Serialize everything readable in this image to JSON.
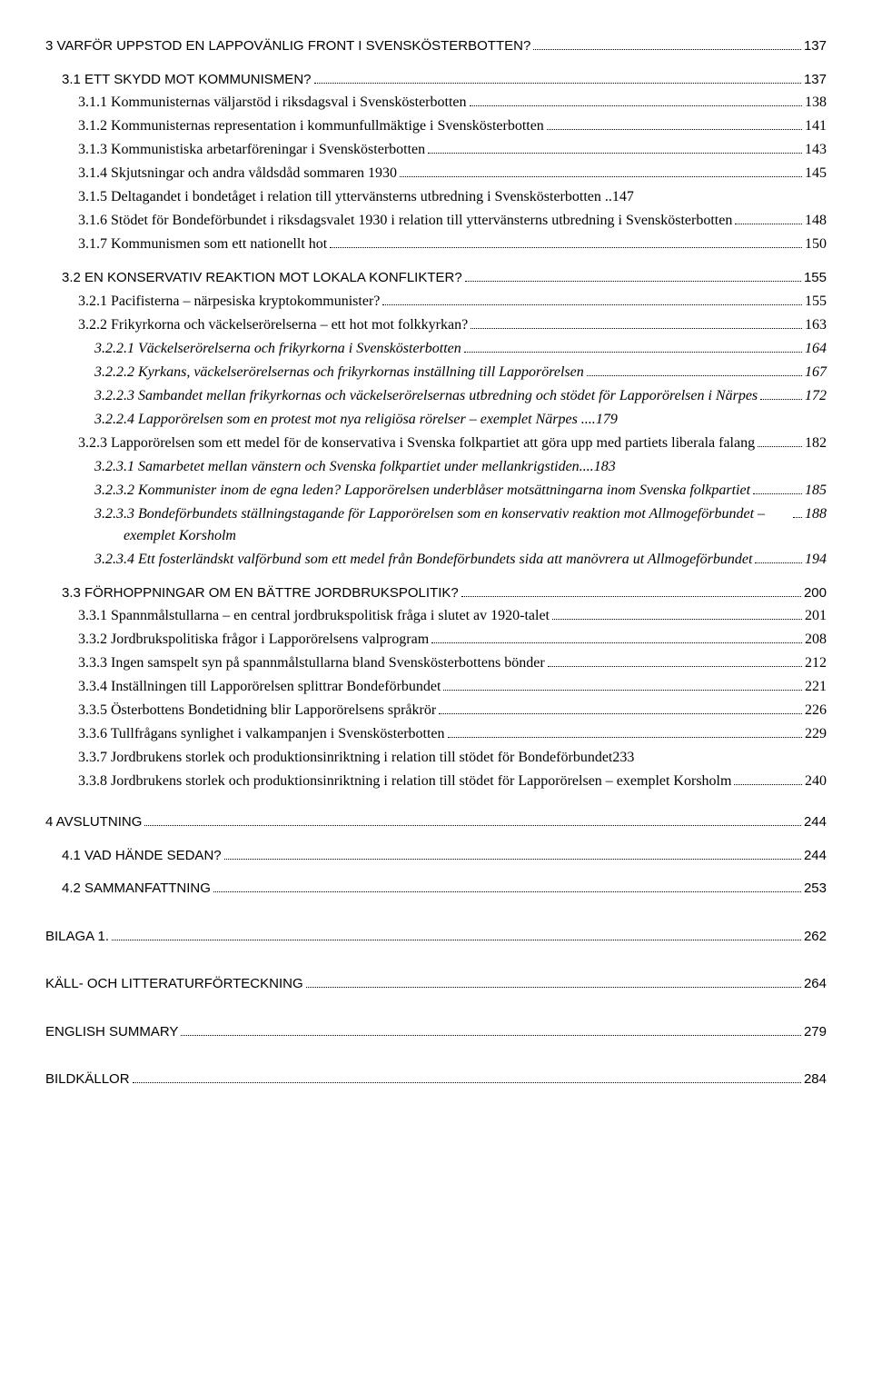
{
  "toc": [
    {
      "lvl": "chapter top-chapter",
      "label": "3  VARFÖR UPPSTOD EN LAPPOVÄNLIG FRONT I SVENSKÖSTERBOTTEN?",
      "page": "137"
    },
    {
      "lvl": "section",
      "label": "3.1 ETT SKYDD MOT KOMMUNISMEN?",
      "page": "137"
    },
    {
      "lvl": "sub",
      "label": "3.1.1 Kommunisternas väljarstöd i riksdagsval i Svenskösterbotten",
      "page": "138"
    },
    {
      "lvl": "sub",
      "label": "3.1.2 Kommunisternas representation i kommunfullmäktige i Svenskösterbotten",
      "page": "141"
    },
    {
      "lvl": "sub",
      "label": "3.1.3 Kommunistiska arbetarföreningar i Svenskösterbotten",
      "page": "143"
    },
    {
      "lvl": "sub",
      "label": "3.1.4 Skjutsningar och andra våldsdåd sommaren 1930",
      "page": "145"
    },
    {
      "lvl": "sub",
      "label": "3.1.5 Deltagandet i bondetåget i relation till yttervänsterns utbredning i Svenskösterbotten ..",
      "page": "147",
      "nodots": true
    },
    {
      "lvl": "sub hanging",
      "label": "3.1.6 Stödet för Bondeförbundet i riksdagsvalet 1930 i relation till yttervänsterns utbredning i Svenskösterbotten",
      "page": "148"
    },
    {
      "lvl": "sub",
      "label": "3.1.7 Kommunismen som ett nationellt hot",
      "page": "150"
    },
    {
      "lvl": "section",
      "label": "3.2 EN KONSERVATIV REAKTION MOT LOKALA KONFLIKTER?",
      "page": "155"
    },
    {
      "lvl": "sub",
      "label": "3.2.1 Pacifisterna – närpesiska kryptokommunister?",
      "page": "155"
    },
    {
      "lvl": "sub",
      "label": "3.2.2 Frikyrkorna och väckelserörelserna – ett hot mot folkkyrkan?",
      "page": "163"
    },
    {
      "lvl": "subsub",
      "label": "3.2.2.1  Väckelserörelserna och frikyrkorna i Svenskösterbotten",
      "page": "164"
    },
    {
      "lvl": "subsub",
      "label": "3.2.2.2  Kyrkans, väckelserörelsernas och frikyrkornas inställning till Lapporörelsen",
      "page": "167"
    },
    {
      "lvl": "subsub hanging-sub",
      "label": "3.2.2.3  Sambandet mellan frikyrkornas och väckelserörelsernas utbredning och stödet för Lapporörelsen i Närpes",
      "page": "172"
    },
    {
      "lvl": "subsub",
      "label": "3.2.2.4  Lapporörelsen som en protest mot nya religiösa rörelser – exemplet Närpes",
      "page": "179",
      "nodots": true,
      "suffix": " .... "
    },
    {
      "lvl": "sub hanging",
      "label": "3.2.3 Lapporörelsen som ett medel för de konservativa i Svenska folkpartiet att göra upp med partiets liberala falang",
      "page": "182"
    },
    {
      "lvl": "subsub",
      "label": "3.2.3.1  Samarbetet mellan vänstern och Svenska folkpartiet under mellankrigstiden",
      "page": "183",
      "nodots": true,
      "suffix": ".... "
    },
    {
      "lvl": "subsub hanging-sub",
      "label": "3.2.3.2  Kommunister inom de egna leden? Lapporörelsen underblåser motsättningarna inom Svenska folkpartiet",
      "page": "185"
    },
    {
      "lvl": "subsub hanging-sub",
      "label": "3.2.3.3  Bondeförbundets ställningstagande för Lapporörelsen som en konservativ reaktion mot Allmogeförbundet – exemplet Korsholm",
      "page": "188"
    },
    {
      "lvl": "subsub hanging-sub",
      "label": "3.2.3.4  Ett fosterländskt valförbund som ett medel från Bondeförbundets sida att manövrera ut Allmogeförbundet",
      "page": "194"
    },
    {
      "lvl": "section",
      "label": "3.3 FÖRHOPPNINGAR OM EN BÄTTRE JORDBRUKSPOLITIK?",
      "page": "200"
    },
    {
      "lvl": "sub",
      "label": "3.3.1 Spannmålstullarna – en central jordbrukspolitisk fråga i slutet av 1920-talet",
      "page": "201"
    },
    {
      "lvl": "sub",
      "label": "3.3.2 Jordbrukspolitiska frågor i Lapporörelsens valprogram",
      "page": "208"
    },
    {
      "lvl": "sub",
      "label": "3.3.3 Ingen samspelt syn på spannmålstullarna bland Svenskösterbottens bönder",
      "page": "212"
    },
    {
      "lvl": "sub",
      "label": "3.3.4 Inställningen till Lapporörelsen splittrar Bondeförbundet",
      "page": "221"
    },
    {
      "lvl": "sub",
      "label": "3.3.5 Österbottens Bondetidning blir Lapporörelsens språkrör",
      "page": "226"
    },
    {
      "lvl": "sub",
      "label": "3.3.6 Tullfrågans synlighet i valkampanjen i Svenskösterbotten",
      "page": "229"
    },
    {
      "lvl": "sub",
      "label": "3.3.7 Jordbrukens storlek och produktionsinriktning i relation till stödet för Bondeförbundet",
      "page": "233",
      "nodots": true,
      "suffix": " "
    },
    {
      "lvl": "sub hanging",
      "label": "3.3.8 Jordbrukens storlek och produktionsinriktning i relation till stödet för Lapporörelsen – exemplet Korsholm",
      "page": "240"
    },
    {
      "lvl": "chapter",
      "label": "4  AVSLUTNING",
      "page": "244"
    },
    {
      "lvl": "section",
      "label": "4.1 VAD HÄNDE SEDAN?",
      "page": "244"
    },
    {
      "lvl": "section",
      "label": "4.2 SAMMANFATTNING",
      "page": "253"
    },
    {
      "lvl": "solo-section",
      "label": "BILAGA 1.",
      "page": "262"
    },
    {
      "lvl": "solo-section",
      "label": "KÄLL- OCH LITTERATURFÖRTECKNING",
      "page": "264"
    },
    {
      "lvl": "solo-section",
      "label": "ENGLISH SUMMARY",
      "page": "279"
    },
    {
      "lvl": "solo-section",
      "label": "BILDKÄLLOR",
      "page": "284"
    }
  ]
}
